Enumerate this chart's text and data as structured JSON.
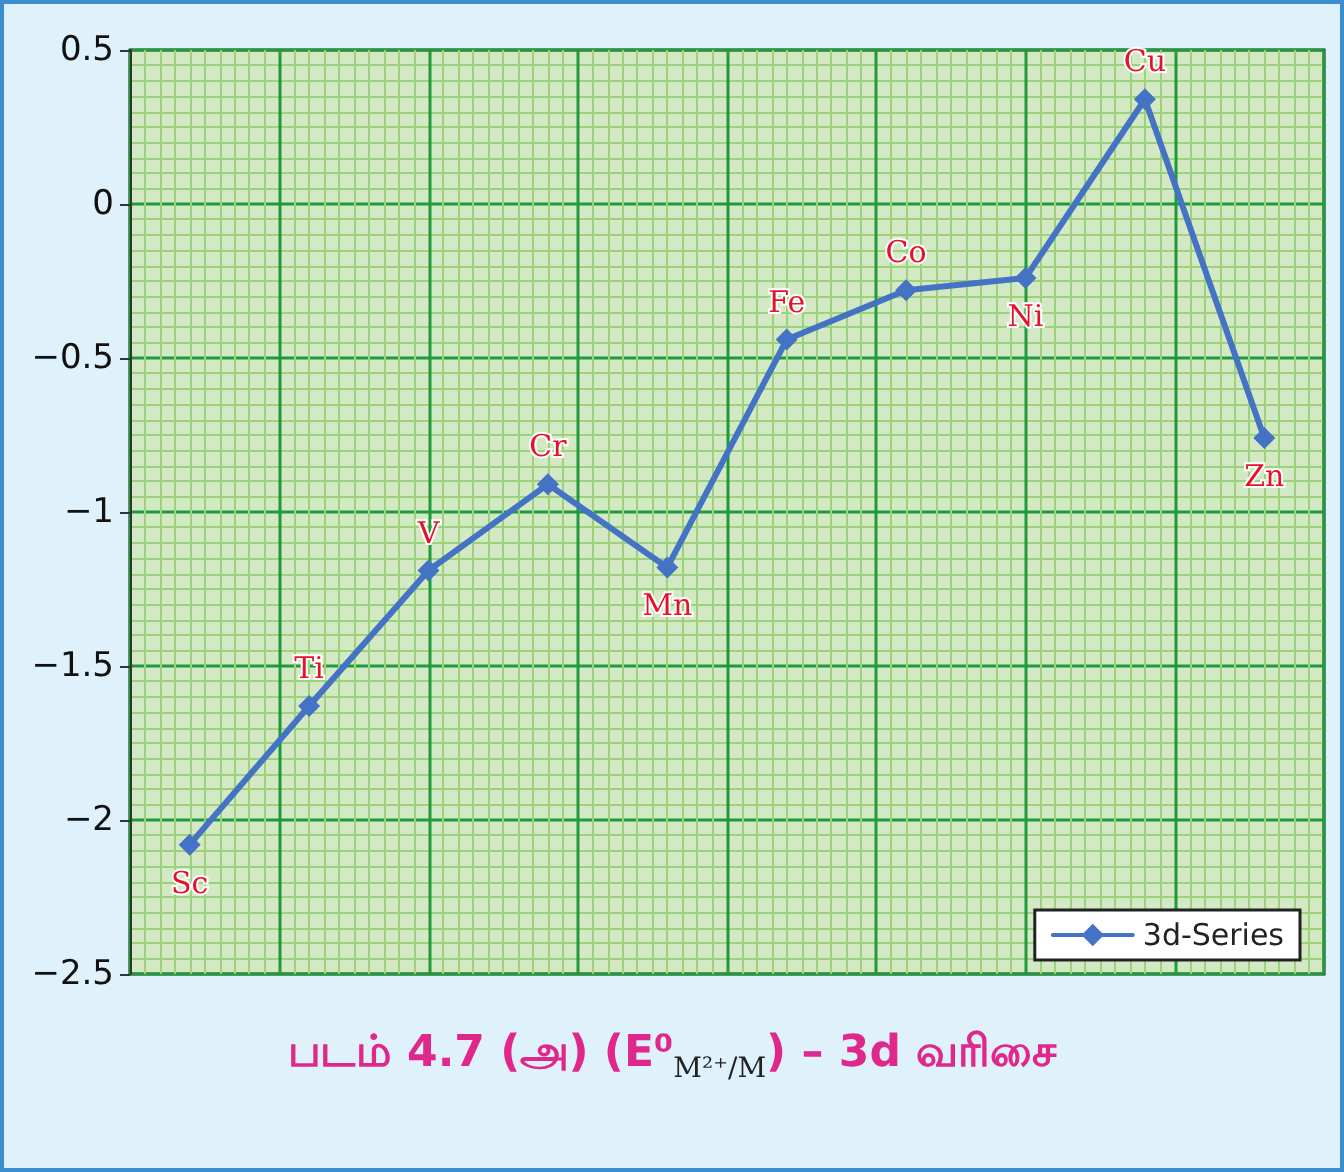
{
  "chart_data": {
    "type": "line",
    "title": "படம் 4.7 (அ) (E⁰$_{M²⁺/M}$) – 3d வரிசை",
    "categories": [
      "Sc",
      "Ti",
      "V",
      "Cr",
      "Mn",
      "Fe",
      "Co",
      "Ni",
      "Cu",
      "Zn"
    ],
    "series": [
      {
        "name": "3d-Series",
        "color": "#4472c4",
        "values": [
          -2.08,
          -1.63,
          -1.19,
          -0.91,
          -1.18,
          -0.44,
          -0.28,
          -0.24,
          0.34,
          -0.76
        ]
      }
    ],
    "ylim": [
      -2.5,
      0.5
    ],
    "yticks": [
      -2.5,
      -2,
      -1.5,
      -1,
      -0.5,
      0,
      0.5
    ],
    "tick_labels": "y",
    "grid": true,
    "legend": "bottom right",
    "marker": "diamond",
    "line_style": "solid"
  }
}
